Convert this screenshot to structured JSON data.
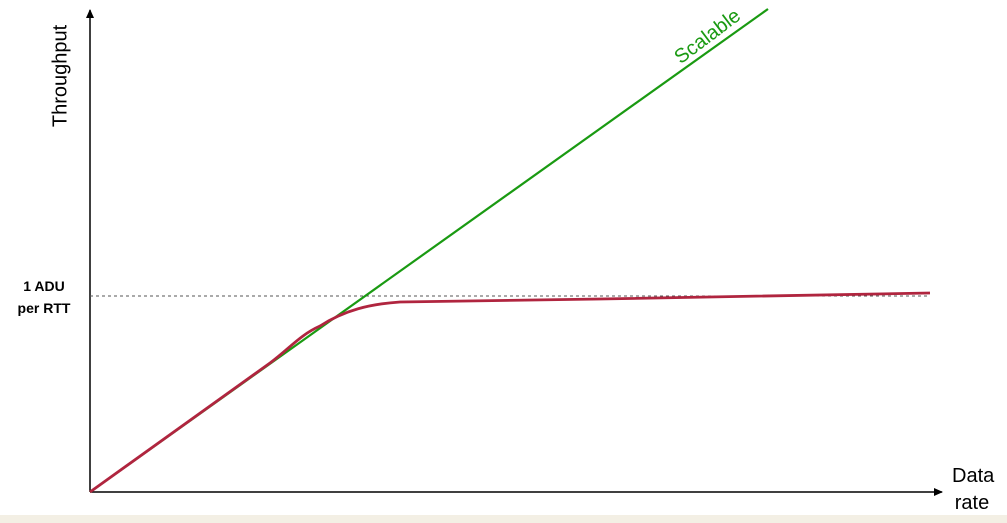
{
  "diagram": {
    "y_axis_label": "Throughput",
    "x_axis_label_line1": "Data",
    "x_axis_label_line2": "rate",
    "level_label_line1": "1 ADU",
    "level_label_line2": "per RTT",
    "scalable_label": "Scalable",
    "colors": {
      "scalable": "#1a9a12",
      "actual": "#b0253f",
      "axis": "#000000",
      "reference": "#555555"
    }
  }
}
